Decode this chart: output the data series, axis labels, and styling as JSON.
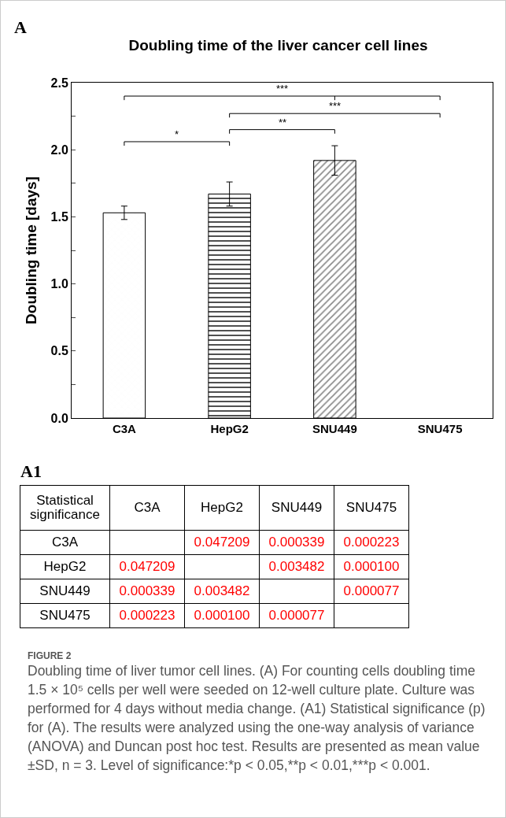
{
  "chart_data": [
    {
      "type": "bar",
      "title": "Doubling time of the liver cancer cell lines",
      "ylabel": "Doubling time [days]",
      "categories": [
        "C3A",
        "HepG2",
        "SNU449",
        "SNU475"
      ],
      "values": [
        1.53,
        1.67,
        1.92,
        null
      ],
      "errors": [
        0.05,
        0.09,
        0.11,
        null
      ],
      "color": "#000000",
      "ylim": [
        0,
        2.5
      ],
      "yticks": [
        {
          "value": 0,
          "label": "0.0"
        },
        {
          "value": 0.25,
          "label": null
        },
        {
          "value": 0.5,
          "label": "0.5"
        },
        {
          "value": 0.75,
          "label": null
        },
        {
          "value": 1,
          "label": "1.0"
        },
        {
          "value": 1.25,
          "label": null
        },
        {
          "value": 1.5,
          "label": "1.5"
        },
        {
          "value": 1.75,
          "label": null
        },
        {
          "value": 2,
          "label": "2.0"
        },
        {
          "value": 2.25,
          "label": null
        },
        {
          "value": 2.5,
          "label": "2.5"
        }
      ],
      "grid": false,
      "legend": false,
      "annotations": [
        "A",
        "*",
        "**",
        "***",
        "***"
      ]
    },
    {
      "type": "other",
      "title": "A1",
      "categories": [
        "C3A",
        "HepG2",
        "SNU449",
        "SNU475"
      ],
      "y_categories": [
        "C3A",
        "HepG2",
        "SNU449",
        "SNU475"
      ],
      "cell_labels": [
        [
          null,
          "0.047209",
          "0.000339",
          "0.000223"
        ],
        [
          "0.047209",
          null,
          "0.003482",
          "0.000100"
        ],
        [
          "0.000339",
          "0.003482",
          null,
          "0.000077"
        ],
        [
          "0.000223",
          "0.000100",
          "0.000077",
          null
        ]
      ],
      "color": "#ff0000",
      "annotations": [
        "Statistical significance",
        "FIGURE 2",
        "Doubling time of liver tumor cell lines. (A) For counting cells doubling time 1.5 × 10⁵ cells per well were seeded on 12-well culture plate. Culture was performed for 4 days without media change. (A1) Statistical significance (p) for (A). The results were analyzed using the one-way analysis of variance (ANOVA) and Duncan post hoc test. Results are presented as mean value ±SD, n = 3. Level of significance:*p < 0.05,**p < 0.01,***p < 0.001."
      ]
    }
  ]
}
